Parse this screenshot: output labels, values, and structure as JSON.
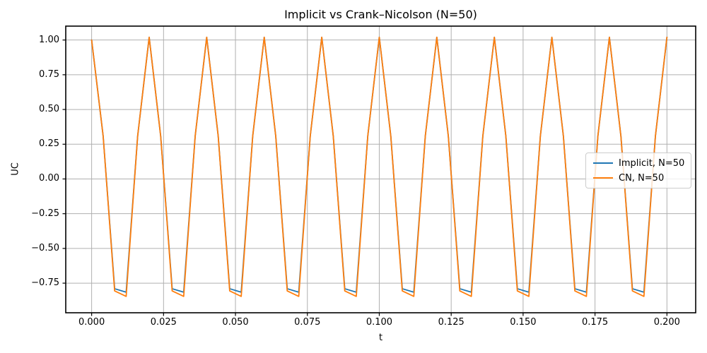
{
  "colors": {
    "background": "#ffffff",
    "grid": "#b0b0b0",
    "spine": "#000000",
    "text": "#000000",
    "implicit_line": "#1f77b4",
    "cn_line": "#ff7f0e",
    "legend_border": "#cccccc"
  },
  "chart_data": {
    "type": "line",
    "title": "Implicit vs Crank–Nicolson (N=50)",
    "xlabel": "t",
    "ylabel": "UC",
    "grid": true,
    "legend_position": "center right",
    "xlim": [
      -0.009,
      0.21
    ],
    "ylim": [
      -0.963,
      1.1
    ],
    "xticks": [
      0.0,
      0.025,
      0.05,
      0.075,
      0.1,
      0.125,
      0.15,
      0.175,
      0.2
    ],
    "xtick_labels": [
      "0.000",
      "0.025",
      "0.050",
      "0.075",
      "0.100",
      "0.125",
      "0.150",
      "0.175",
      "0.200"
    ],
    "yticks": [
      1.0,
      0.75,
      0.5,
      0.25,
      0.0,
      -0.25,
      -0.5,
      -0.75
    ],
    "ytick_labels": [
      "1.00",
      "0.75",
      "0.50",
      "0.25",
      "0.00",
      "−0.25",
      "−0.50",
      "−0.75"
    ],
    "x": [
      0.0,
      0.004,
      0.008,
      0.012,
      0.016,
      0.02,
      0.024,
      0.028,
      0.032,
      0.036,
      0.04,
      0.044,
      0.048,
      0.052,
      0.056,
      0.06,
      0.064,
      0.068,
      0.072,
      0.076,
      0.08,
      0.084,
      0.088,
      0.092,
      0.096,
      0.1,
      0.104,
      0.108,
      0.112,
      0.116,
      0.12,
      0.124,
      0.128,
      0.132,
      0.136,
      0.14,
      0.144,
      0.148,
      0.152,
      0.156,
      0.16,
      0.164,
      0.168,
      0.172,
      0.176,
      0.18,
      0.184,
      0.188,
      0.192,
      0.196,
      0.2
    ],
    "series": [
      {
        "name": "Implicit, N=50",
        "color": "#1f77b4",
        "values": [
          1.0,
          0.309,
          -0.79,
          -0.815,
          0.309,
          1.02,
          0.309,
          -0.79,
          -0.815,
          0.309,
          1.02,
          0.309,
          -0.79,
          -0.815,
          0.309,
          1.02,
          0.309,
          -0.79,
          -0.815,
          0.309,
          1.02,
          0.309,
          -0.79,
          -0.815,
          0.309,
          1.02,
          0.309,
          -0.79,
          -0.815,
          0.309,
          1.02,
          0.309,
          -0.79,
          -0.815,
          0.309,
          1.02,
          0.309,
          -0.79,
          -0.815,
          0.309,
          1.02,
          0.309,
          -0.79,
          -0.815,
          0.309,
          1.02,
          0.309,
          -0.79,
          -0.815,
          0.309,
          1.02
        ]
      },
      {
        "name": "CN, N=50",
        "color": "#ff7f0e",
        "values": [
          1.0,
          0.309,
          -0.806,
          -0.845,
          0.309,
          1.02,
          0.309,
          -0.806,
          -0.845,
          0.309,
          1.02,
          0.309,
          -0.806,
          -0.845,
          0.309,
          1.02,
          0.309,
          -0.806,
          -0.845,
          0.309,
          1.02,
          0.309,
          -0.806,
          -0.845,
          0.309,
          1.02,
          0.309,
          -0.806,
          -0.845,
          0.309,
          1.02,
          0.309,
          -0.806,
          -0.845,
          0.309,
          1.02,
          0.309,
          -0.806,
          -0.845,
          0.309,
          1.02,
          0.309,
          -0.806,
          -0.845,
          0.309,
          1.02,
          0.309,
          -0.806,
          -0.845,
          0.309,
          1.02
        ]
      }
    ]
  }
}
